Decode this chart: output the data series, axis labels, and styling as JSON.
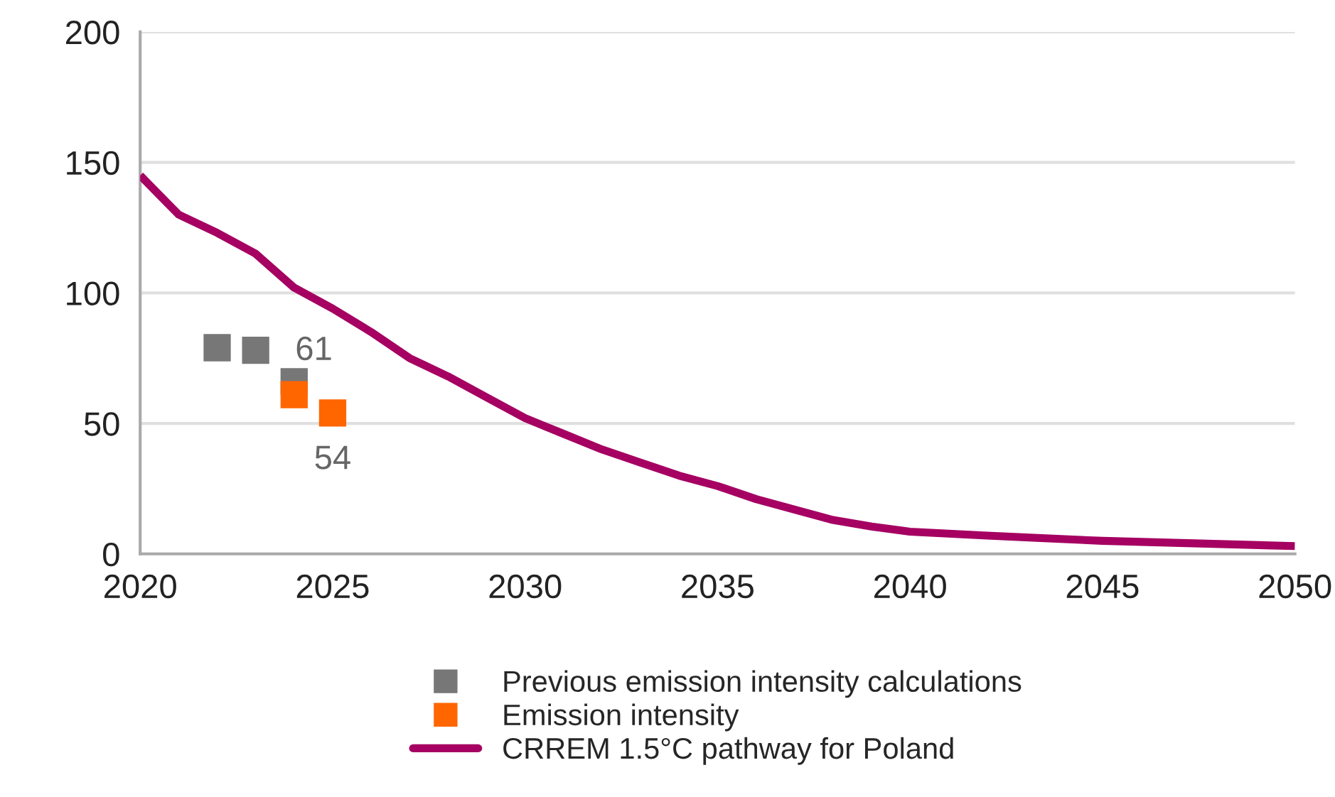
{
  "chart_data": {
    "type": "line",
    "x": [
      2020,
      2021,
      2022,
      2023,
      2024,
      2025,
      2026,
      2027,
      2028,
      2029,
      2030,
      2031,
      2032,
      2033,
      2034,
      2035,
      2036,
      2037,
      2038,
      2039,
      2040,
      2042,
      2045,
      2050
    ],
    "series": [
      {
        "name": "Previous emission intensity calculations",
        "type": "scatter",
        "marker": "square",
        "color": "#777777",
        "x": [
          2022,
          2023,
          2024
        ],
        "values": [
          79,
          78,
          66
        ]
      },
      {
        "name": "Emission intensity",
        "type": "scatter",
        "marker": "square",
        "color": "#ff6600",
        "x": [
          2024,
          2025
        ],
        "values": [
          61,
          54
        ],
        "value_labels": [
          "61",
          "54"
        ]
      },
      {
        "name": "CRREM 1.5°C pathway for Poland",
        "color": "#a50062",
        "values": [
          145,
          130,
          123,
          115,
          102,
          94,
          85,
          75,
          68,
          60,
          52,
          46,
          40,
          35,
          30,
          26,
          21,
          17,
          13,
          10.5,
          8.5,
          7,
          5,
          3
        ]
      }
    ],
    "xlim": [
      2020,
      2050
    ],
    "xticks": [
      2020,
      2025,
      2030,
      2035,
      2040,
      2045,
      2050
    ],
    "ylim": [
      0,
      200
    ],
    "yticks": [
      0,
      50,
      100,
      150,
      200
    ],
    "grid": "y",
    "legend": "bottom"
  }
}
